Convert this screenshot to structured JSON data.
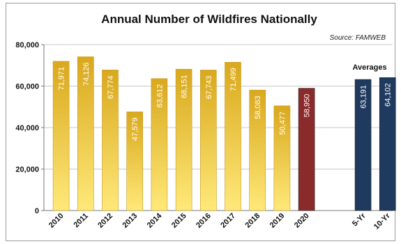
{
  "chart_data": {
    "type": "bar",
    "title": "Annual Number of Wildfires Nationally",
    "source": "Source: FAMWEB",
    "annotation": "Averages",
    "categories": [
      "2010",
      "2011",
      "2012",
      "2013",
      "2014",
      "2015",
      "2016",
      "2017",
      "2018",
      "2019",
      "2020",
      "5-Yr",
      "10-Yr"
    ],
    "values": [
      71971,
      74126,
      67774,
      47579,
      63612,
      68151,
      67743,
      71499,
      58083,
      50477,
      58950,
      63191,
      64102
    ],
    "value_labels": [
      "71,971",
      "74,126",
      "67,774",
      "47,579",
      "63,612",
      "68,151",
      "67,743",
      "71,499",
      "58,083",
      "50,477",
      "58,950",
      "63,191",
      "64,102"
    ],
    "bar_kinds": [
      "year",
      "year",
      "year",
      "year",
      "year",
      "year",
      "year",
      "year",
      "year",
      "year",
      "current",
      "average",
      "average"
    ],
    "colors": {
      "year_top": "#d9a81c",
      "year_bottom": "#ffe97a",
      "current": "#8b2a2a",
      "average": "#1f3a5f"
    },
    "yticks": [
      0,
      20000,
      40000,
      60000,
      80000
    ],
    "ytick_labels": [
      "0",
      "20,000",
      "40,000",
      "60,000",
      "80,000"
    ],
    "ylim": [
      0,
      80000
    ],
    "grid": true,
    "xlabel": "",
    "ylabel": ""
  }
}
